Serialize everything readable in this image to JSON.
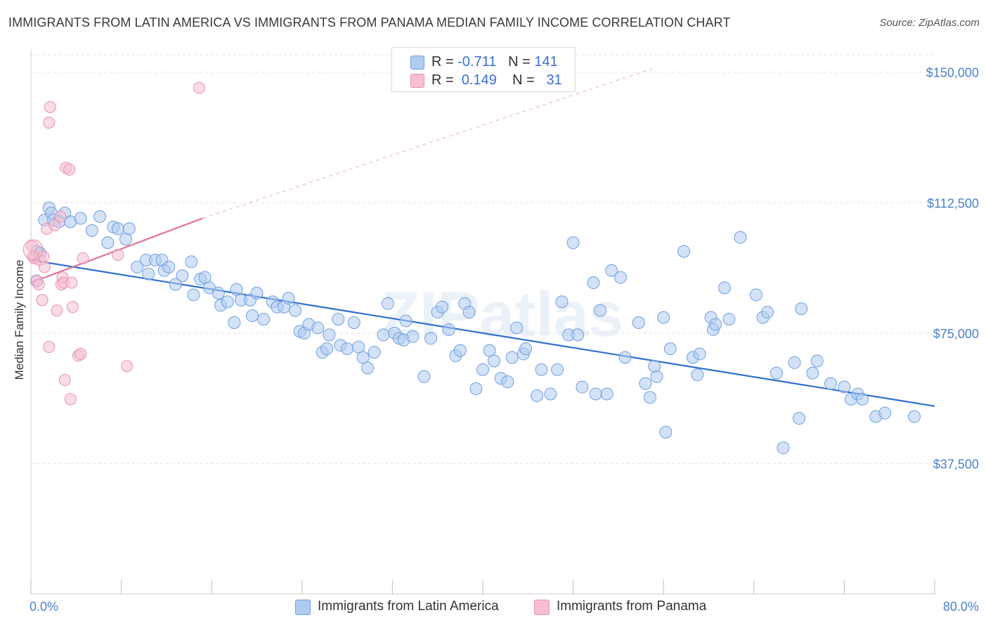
{
  "header": {
    "title": "IMMIGRANTS FROM LATIN AMERICA VS IMMIGRANTS FROM PANAMA MEDIAN FAMILY INCOME CORRELATION CHART",
    "source": "Source: ZipAtlas.com"
  },
  "watermark": "ZIPatlas",
  "legend": {
    "rows": [
      {
        "r_label": "R =",
        "r_value": "-0.711",
        "n_label": "N =",
        "n_value": "141",
        "color": "#aecbf0"
      },
      {
        "r_label": "R =",
        "r_value": "0.149",
        "n_label": "N =",
        "n_value": "31",
        "color": "#f6bfd1"
      }
    ]
  },
  "bottom_legend": [
    {
      "label": "Immigrants from Latin America",
      "color": "#aecbf0"
    },
    {
      "label": "Immigrants from Panama",
      "color": "#f6bfd1"
    }
  ],
  "chart_data": {
    "type": "scatter",
    "title": "IMMIGRANTS FROM LATIN AMERICA VS IMMIGRANTS FROM PANAMA MEDIAN FAMILY INCOME CORRELATION CHART",
    "ylabel": "Median Family Income",
    "xlabel": "",
    "xlim": [
      0,
      80
    ],
    "ylim": [
      0,
      155000
    ],
    "x_tick_labels": [
      "0.0%",
      "80.0%"
    ],
    "y_ticks": [
      37500,
      75000,
      112500,
      150000
    ],
    "y_tick_labels": [
      "$37,500",
      "$75,000",
      "$112,500",
      "$150,000"
    ],
    "grid": true,
    "series": [
      {
        "name": "Immigrants from Latin America",
        "color": "#aecbf0",
        "stroke": "#6f9fe0",
        "trend": {
          "x": [
            0,
            80
          ],
          "y": [
            96000,
            54000
          ],
          "color": "#2f6fd0"
        },
        "points": [
          [
            0.5,
            98500
          ],
          [
            0.5,
            90000
          ],
          [
            0.8,
            98000
          ],
          [
            1.2,
            107500
          ],
          [
            1.6,
            111000
          ],
          [
            1.8,
            109500
          ],
          [
            2.0,
            107500
          ],
          [
            2.5,
            107000
          ],
          [
            3.0,
            109500
          ],
          [
            3.5,
            107000
          ],
          [
            4.4,
            108000
          ],
          [
            5.4,
            104500
          ],
          [
            6.1,
            108500
          ],
          [
            7.3,
            105500
          ],
          [
            6.8,
            101000
          ],
          [
            8.4,
            102000
          ],
          [
            7.7,
            105000
          ],
          [
            8.7,
            105000
          ],
          [
            9.4,
            94000
          ],
          [
            10.2,
            96000
          ],
          [
            10.4,
            92000
          ],
          [
            11.0,
            96000
          ],
          [
            11.6,
            96000
          ],
          [
            11.8,
            93000
          ],
          [
            12.2,
            94000
          ],
          [
            13.4,
            91500
          ],
          [
            12.8,
            89000
          ],
          [
            14.2,
            95500
          ],
          [
            14.4,
            86000
          ],
          [
            15.0,
            90500
          ],
          [
            15.4,
            91000
          ],
          [
            15.8,
            88000
          ],
          [
            16.6,
            86500
          ],
          [
            16.8,
            83000
          ],
          [
            17.4,
            84000
          ],
          [
            18.0,
            78000
          ],
          [
            18.2,
            87500
          ],
          [
            18.6,
            84500
          ],
          [
            19.4,
            84500
          ],
          [
            19.6,
            80000
          ],
          [
            20.0,
            86500
          ],
          [
            20.6,
            79000
          ],
          [
            21.4,
            84000
          ],
          [
            21.8,
            82500
          ],
          [
            22.4,
            82500
          ],
          [
            22.8,
            85000
          ],
          [
            23.4,
            81500
          ],
          [
            23.8,
            75500
          ],
          [
            24.2,
            75000
          ],
          [
            24.6,
            77500
          ],
          [
            25.4,
            76500
          ],
          [
            25.8,
            69500
          ],
          [
            26.2,
            70500
          ],
          [
            26.4,
            74500
          ],
          [
            27.2,
            79000
          ],
          [
            27.4,
            71500
          ],
          [
            28.0,
            70500
          ],
          [
            28.6,
            78000
          ],
          [
            29.0,
            71000
          ],
          [
            29.4,
            68000
          ],
          [
            29.8,
            65000
          ],
          [
            30.4,
            69500
          ],
          [
            31.2,
            74500
          ],
          [
            31.6,
            83500
          ],
          [
            32.2,
            75000
          ],
          [
            32.6,
            73500
          ],
          [
            33.0,
            73000
          ],
          [
            33.2,
            78500
          ],
          [
            33.8,
            74000
          ],
          [
            34.8,
            62500
          ],
          [
            35.4,
            73500
          ],
          [
            36.0,
            81000
          ],
          [
            36.4,
            82500
          ],
          [
            37.0,
            76000
          ],
          [
            37.6,
            68500
          ],
          [
            38.0,
            70000
          ],
          [
            38.4,
            83500
          ],
          [
            38.8,
            81000
          ],
          [
            39.4,
            59000
          ],
          [
            40.0,
            64500
          ],
          [
            40.6,
            70000
          ],
          [
            41.0,
            67000
          ],
          [
            41.6,
            62000
          ],
          [
            42.2,
            61000
          ],
          [
            42.6,
            68000
          ],
          [
            43.0,
            76500
          ],
          [
            43.6,
            69000
          ],
          [
            43.8,
            70500
          ],
          [
            44.8,
            57000
          ],
          [
            45.2,
            64500
          ],
          [
            46.0,
            57500
          ],
          [
            46.6,
            64500
          ],
          [
            47.0,
            84000
          ],
          [
            47.6,
            74500
          ],
          [
            48.0,
            101000
          ],
          [
            48.4,
            74500
          ],
          [
            48.8,
            59500
          ],
          [
            49.8,
            89500
          ],
          [
            50.0,
            57500
          ],
          [
            50.4,
            81500
          ],
          [
            51.0,
            57500
          ],
          [
            51.4,
            93000
          ],
          [
            52.2,
            91000
          ],
          [
            52.6,
            68000
          ],
          [
            53.8,
            78000
          ],
          [
            54.4,
            60500
          ],
          [
            54.8,
            56500
          ],
          [
            55.4,
            62500
          ],
          [
            55.2,
            65500
          ],
          [
            56.0,
            79500
          ],
          [
            56.6,
            70500
          ],
          [
            56.2,
            46500
          ],
          [
            57.8,
            98500
          ],
          [
            58.6,
            68000
          ],
          [
            59.0,
            63000
          ],
          [
            59.2,
            69000
          ],
          [
            60.2,
            79500
          ],
          [
            60.4,
            76000
          ],
          [
            60.6,
            77500
          ],
          [
            61.4,
            88000
          ],
          [
            61.8,
            79000
          ],
          [
            62.8,
            102500
          ],
          [
            64.2,
            86000
          ],
          [
            64.8,
            79500
          ],
          [
            65.2,
            81000
          ],
          [
            66.6,
            42000
          ],
          [
            66.0,
            63500
          ],
          [
            67.6,
            66500
          ],
          [
            68.0,
            50500
          ],
          [
            68.2,
            82000
          ],
          [
            69.2,
            63500
          ],
          [
            69.6,
            67000
          ],
          [
            70.8,
            60500
          ],
          [
            72.0,
            59500
          ],
          [
            72.6,
            56000
          ],
          [
            73.2,
            57500
          ],
          [
            73.6,
            56000
          ],
          [
            74.8,
            51000
          ],
          [
            75.6,
            52000
          ],
          [
            78.2,
            51000
          ]
        ]
      },
      {
        "name": "Immigrants from Panama",
        "color": "#f6bfd1",
        "stroke": "#ea8fad",
        "trend": {
          "x": [
            0,
            15.2
          ],
          "y": [
            89500,
            108000
          ],
          "dash_to": [
            55,
            151000
          ],
          "color": "#e3739a"
        },
        "points": [
          [
            0.1,
            100000
          ],
          [
            0.2,
            97000
          ],
          [
            0.3,
            96500
          ],
          [
            0.5,
            90000
          ],
          [
            0.7,
            89000
          ],
          [
            0.8,
            96000
          ],
          [
            1.0,
            84500
          ],
          [
            1.1,
            97000
          ],
          [
            1.2,
            94000
          ],
          [
            1.4,
            105000
          ],
          [
            1.6,
            71000
          ],
          [
            1.6,
            135500
          ],
          [
            1.7,
            140000
          ],
          [
            2.1,
            106000
          ],
          [
            2.3,
            81500
          ],
          [
            2.6,
            108500
          ],
          [
            2.7,
            89000
          ],
          [
            2.8,
            91000
          ],
          [
            2.9,
            89500
          ],
          [
            3.0,
            61500
          ],
          [
            3.1,
            122500
          ],
          [
            3.4,
            122000
          ],
          [
            3.5,
            56000
          ],
          [
            3.6,
            89500
          ],
          [
            3.7,
            82500
          ],
          [
            4.2,
            68500
          ],
          [
            4.4,
            69000
          ],
          [
            4.6,
            96500
          ],
          [
            7.7,
            97500
          ],
          [
            8.5,
            65500
          ],
          [
            14.9,
            145500
          ]
        ]
      }
    ]
  }
}
